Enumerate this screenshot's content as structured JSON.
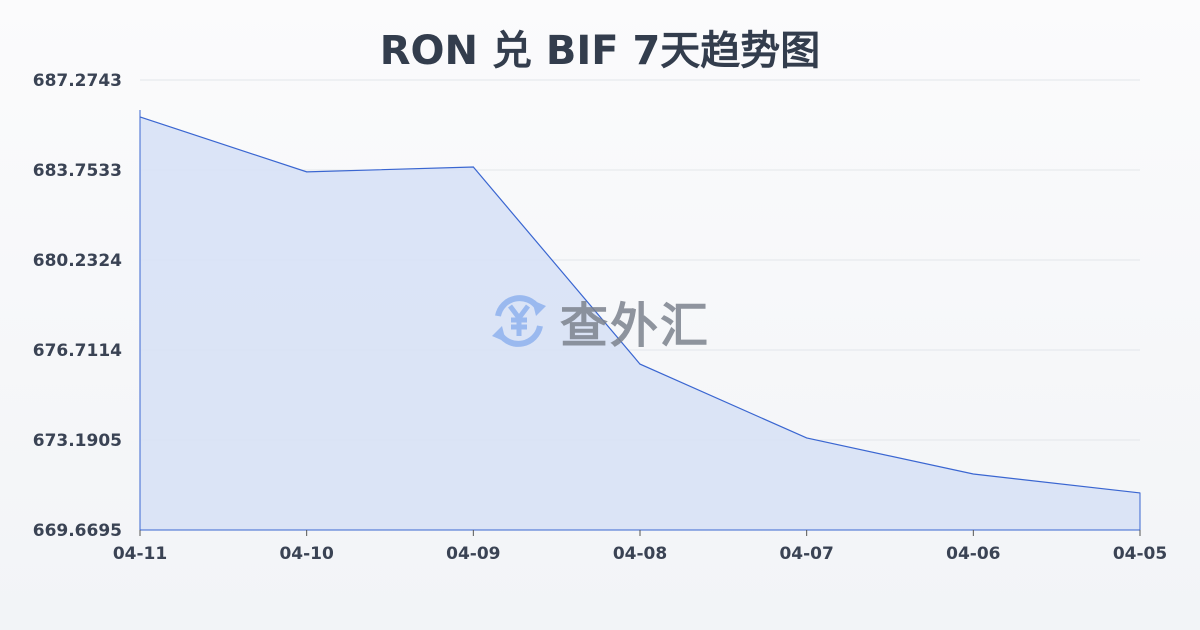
{
  "chart_data": {
    "type": "area",
    "title": "RON 兑 BIF 7天趋势图",
    "categories": [
      "04-11",
      "04-10",
      "04-09",
      "04-08",
      "04-07",
      "04-06",
      "04-05"
    ],
    "values": [
      685.83,
      683.68,
      683.87,
      676.16,
      673.27,
      671.86,
      671.12
    ],
    "yticks": [
      "687.2743",
      "683.7533",
      "680.2324",
      "676.7114",
      "673.1905",
      "669.6695"
    ],
    "ylim": [
      669.6695,
      687.2743
    ],
    "grid": true,
    "line_color": "#3a66d1",
    "fill_color": "#d6e1f6"
  },
  "watermark": {
    "text": "查外汇",
    "icon": "yen-exchange-icon"
  }
}
